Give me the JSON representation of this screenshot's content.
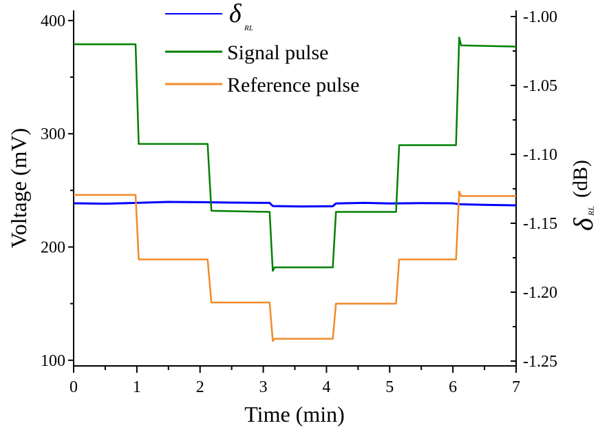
{
  "chart_data": {
    "type": "line",
    "xlabel": "Time (min)",
    "ylabel_left": "Voltage (mV)",
    "ylabel_right_symbol": "δ",
    "ylabel_right_subscript": "RL",
    "ylabel_right_unit": "(dB)",
    "xlim": [
      0,
      7
    ],
    "ylim_left": [
      95,
      409
    ],
    "ylim_right": [
      -1.2535,
      -0.9955
    ],
    "x_ticks": [
      "0",
      "1",
      "2",
      "3",
      "4",
      "5",
      "6",
      "7"
    ],
    "y_left_ticks": [
      "100",
      "200",
      "300",
      "400"
    ],
    "y_right_ticks": [
      "-1.00",
      "-1.05",
      "-1.10",
      "-1.15",
      "-1.20",
      "-1.25"
    ],
    "grid": false,
    "legend_position": "top-center",
    "series": [
      {
        "name": "δ",
        "name_subscript": "RL",
        "axis": "right",
        "color": "#0000ff",
        "points": [
          [
            0,
            -1.1355
          ],
          [
            0.5,
            -1.1358
          ],
          [
            1,
            -1.1352
          ],
          [
            1.5,
            -1.1345
          ],
          [
            2,
            -1.1347
          ],
          [
            2.5,
            -1.135
          ],
          [
            3.1,
            -1.1352
          ],
          [
            3.15,
            -1.1375
          ],
          [
            3.6,
            -1.1378
          ],
          [
            4.1,
            -1.1376
          ],
          [
            4.15,
            -1.1356
          ],
          [
            4.6,
            -1.1352
          ],
          [
            5,
            -1.1356
          ],
          [
            5.5,
            -1.1354
          ],
          [
            6,
            -1.1355
          ],
          [
            6.1,
            -1.1362
          ],
          [
            6.5,
            -1.1366
          ],
          [
            7,
            -1.137
          ]
        ]
      },
      {
        "name": "Signal pulse",
        "axis": "left",
        "color": "#008000",
        "points": [
          [
            0,
            379
          ],
          [
            0.98,
            379
          ],
          [
            1.03,
            291
          ],
          [
            2.12,
            291
          ],
          [
            2.18,
            232
          ],
          [
            3.1,
            231
          ],
          [
            3.15,
            179
          ],
          [
            3.18,
            182
          ],
          [
            4.1,
            182
          ],
          [
            4.15,
            231
          ],
          [
            5.1,
            231
          ],
          [
            5.15,
            290
          ],
          [
            6.05,
            290
          ],
          [
            6.1,
            385
          ],
          [
            6.13,
            378
          ],
          [
            7,
            377
          ]
        ]
      },
      {
        "name": "Reference pulse",
        "axis": "left",
        "color": "#f08a2a",
        "points": [
          [
            0,
            246
          ],
          [
            0.98,
            246
          ],
          [
            1.03,
            189
          ],
          [
            2.12,
            189
          ],
          [
            2.18,
            151
          ],
          [
            3.1,
            151
          ],
          [
            3.15,
            117
          ],
          [
            3.18,
            119
          ],
          [
            4.1,
            119
          ],
          [
            4.15,
            150
          ],
          [
            5.1,
            150
          ],
          [
            5.15,
            189
          ],
          [
            6.05,
            189
          ],
          [
            6.1,
            249
          ],
          [
            6.13,
            245
          ],
          [
            7,
            245
          ]
        ]
      }
    ]
  }
}
